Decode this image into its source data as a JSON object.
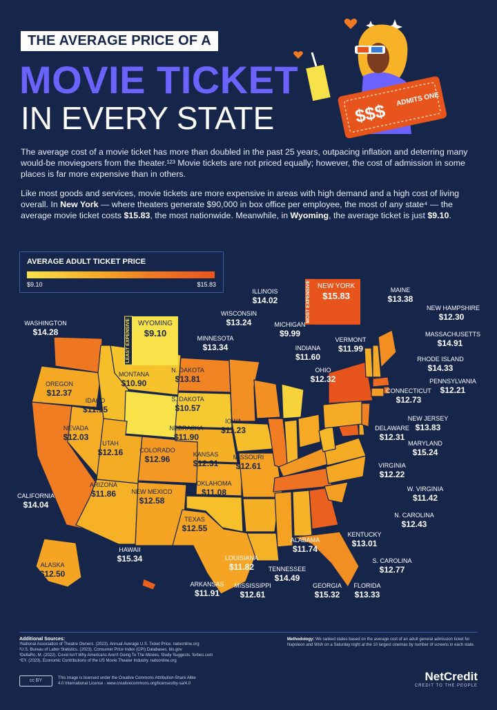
{
  "header": {
    "kicker": "THE AVERAGE PRICE OF A",
    "title_line1": "MOVIE TICKET",
    "title_line2": "IN EVERY STATE"
  },
  "intro": {
    "p1": "The average cost of a movie ticket has more than doubled in the past 25 years, outpacing inflation and deterring many would-be moviegoers from the theater.¹²³ Movie tickets are not priced equally; however, the cost of admission in some places is far more expensive than in others.",
    "p2_a": "Like most goods and services, movie tickets are more expensive in areas with high demand and a high cost of living overall. In ",
    "p2_ny": "New York",
    "p2_b": " — where theaters generate $90,000 in box office per employee, the most of any state⁴ — the average movie ticket costs ",
    "p2_ny_price": "$15.83",
    "p2_c": ", the most nationwide. Meanwhile, in ",
    "p2_wy": "Wyoming",
    "p2_d": ", the average ticket is just ",
    "p2_wy_price": "$9.10",
    "p2_e": "."
  },
  "legend": {
    "title": "AVERAGE ADULT TICKET PRICE",
    "min_label": "$9.10",
    "max_label": "$15.83"
  },
  "hero": {
    "ticket_text": "$$$",
    "admits_text": "ADMITS ONE"
  },
  "extremes": {
    "least_tag": "LEAST EXPENSIVE",
    "most_tag": "MOST EXPENSIVE"
  },
  "colors": {
    "background": "#16254a",
    "title_purple": "#6c63ff",
    "scale_low": "#f8e24a",
    "scale_high": "#e8551c"
  },
  "chart_data": {
    "type": "choropleth",
    "metric": "AVERAGE ADULT TICKET PRICE",
    "range": [
      9.1,
      15.83
    ],
    "states": [
      {
        "name": "WASHINGTON",
        "price": "$14.28"
      },
      {
        "name": "OREGON",
        "price": "$12.37"
      },
      {
        "name": "CALIFORNIA",
        "price": "$14.04"
      },
      {
        "name": "NEVADA",
        "price": "$12.03"
      },
      {
        "name": "IDAHO",
        "price": "$11.15"
      },
      {
        "name": "MONTANA",
        "price": "$10.90"
      },
      {
        "name": "WYOMING",
        "price": "$9.10"
      },
      {
        "name": "UTAH",
        "price": "$12.16"
      },
      {
        "name": "ARIZONA",
        "price": "$11.86"
      },
      {
        "name": "COLORADO",
        "price": "$12.96"
      },
      {
        "name": "NEW MEXICO",
        "price": "$12.58"
      },
      {
        "name": "N. DAKOTA",
        "price": "$13.81"
      },
      {
        "name": "S. DAKOTA",
        "price": "$10.57"
      },
      {
        "name": "NEBRASKA",
        "price": "$11.90"
      },
      {
        "name": "KANSAS",
        "price": "$12.31"
      },
      {
        "name": "OKLAHOMA",
        "price": "$11.08"
      },
      {
        "name": "TEXAS",
        "price": "$12.55"
      },
      {
        "name": "MINNESOTA",
        "price": "$13.34"
      },
      {
        "name": "IOWA",
        "price": "$11.23"
      },
      {
        "name": "MISSOURI",
        "price": "$12.61"
      },
      {
        "name": "ARKANSAS",
        "price": "$11.91"
      },
      {
        "name": "LOUISIANA",
        "price": "$11.82"
      },
      {
        "name": "WISCONSIN",
        "price": "$13.24"
      },
      {
        "name": "ILLINOIS",
        "price": "$14.02"
      },
      {
        "name": "MICHIGAN",
        "price": "$9.99"
      },
      {
        "name": "INDIANA",
        "price": "$11.60"
      },
      {
        "name": "OHIO",
        "price": "$12.32"
      },
      {
        "name": "KENTUCKY",
        "price": "$13.01"
      },
      {
        "name": "TENNESSEE",
        "price": "$14.49"
      },
      {
        "name": "MISSISSIPPI",
        "price": "$12.61"
      },
      {
        "name": "ALABAMA",
        "price": "$11.74"
      },
      {
        "name": "GEORGIA",
        "price": "$15.32"
      },
      {
        "name": "FLORIDA",
        "price": "$13.33"
      },
      {
        "name": "S. CAROLINA",
        "price": "$12.77"
      },
      {
        "name": "N. CAROLINA",
        "price": "$12.43"
      },
      {
        "name": "VIRGINIA",
        "price": "$12.22"
      },
      {
        "name": "W. VIRGINIA",
        "price": "$11.42"
      },
      {
        "name": "MARYLAND",
        "price": "$15.24"
      },
      {
        "name": "DELAWARE",
        "price": "$12.31"
      },
      {
        "name": "NEW JERSEY",
        "price": "$13.83"
      },
      {
        "name": "PENNSYLVANIA",
        "price": "$12.21"
      },
      {
        "name": "NEW YORK",
        "price": "$15.83"
      },
      {
        "name": "VERMONT",
        "price": "$11.99"
      },
      {
        "name": "NEW HAMPSHIRE",
        "price": "$12.30"
      },
      {
        "name": "MAINE",
        "price": "$13.38"
      },
      {
        "name": "MASSACHUSETTS",
        "price": "$14.91"
      },
      {
        "name": "RHODE ISLAND",
        "price": "$14.33"
      },
      {
        "name": "CONNECTICUT",
        "price": "$12.73"
      },
      {
        "name": "ALASKA",
        "price": "$12.50"
      },
      {
        "name": "HAWAII",
        "price": "$15.34"
      }
    ]
  },
  "footer": {
    "sources_title": "Additional Sources:",
    "sources": [
      "¹National Association of Theatre Owners. (2023). Annual Average U.S. Ticket Price. natoonline.org",
      "²U.S. Bureau of Labor Statistics. (2023). Consumer Price Index (CPI) Databases. bls.gov",
      "³DellaRo, M. (2022). Covid Isn't Why Americans Aren't Going To The Movies, Study Suggests. forbes.com",
      "⁴EY. (2023). Economic Contributions of the US Movie Theater Industry. natoonline.org"
    ],
    "method_title": "Methodology:",
    "method_text": "We ranked states based on the average cost of an adult general admission ticket for Napoleon and Wish on a Saturday night at the 10 largest cinemas by number of screens in each state.",
    "license_badge": "cc BY",
    "license_text_1": "This image is licensed under the Creative Commons Attribution-Share Alike",
    "license_text_2": "4.0 International License - www.creativecommons.org/licenses/by-sa/4.0",
    "brand": "NetCredit",
    "brand_tagline": "CREDIT TO THE PEOPLE"
  }
}
